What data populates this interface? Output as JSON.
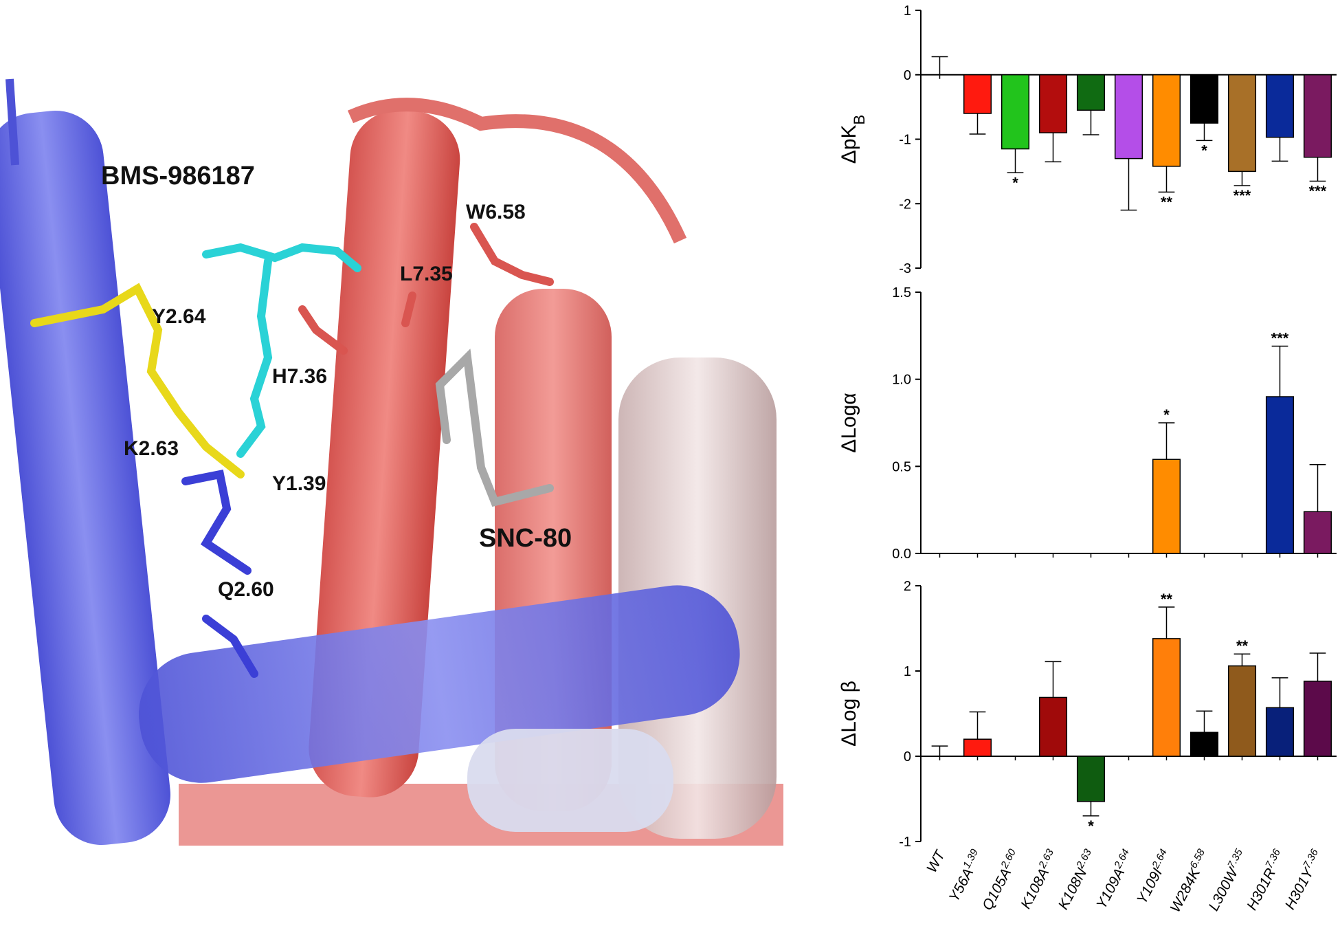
{
  "structure_labels": {
    "ligand_1": "BMS-986187",
    "ligand_2": "SNC-80",
    "residues": [
      "W6.58",
      "L7.35",
      "Y2.64",
      "H7.36",
      "K2.63",
      "Y1.39",
      "Q2.60"
    ]
  },
  "chart_data": [
    {
      "type": "bar",
      "ylabel": "ΔpK",
      "ylabel_subscript": "B",
      "values": [
        0,
        -0.6,
        -1.15,
        -0.9,
        -0.55,
        -1.3,
        -1.42,
        -0.75,
        -1.5,
        -0.97,
        -1.28
      ],
      "errors": [
        0.28,
        0.32,
        0.37,
        0.45,
        0.38,
        0.8,
        0.4,
        0.27,
        0.22,
        0.37,
        0.37
      ],
      "significance": [
        null,
        null,
        "*",
        null,
        null,
        null,
        "**",
        "*",
        "***",
        null,
        "***"
      ],
      "colors": [
        "#ffffff",
        "#ff1a0f",
        "#22c41c",
        "#b30d0d",
        "#106b12",
        "#b44ee8",
        "#ff8c00",
        "#000000",
        "#a87028",
        "#0a2a9a",
        "#7a1a60"
      ],
      "ylim": [
        -3,
        1
      ],
      "yticks": [
        -3,
        -2,
        -1,
        0,
        1
      ]
    },
    {
      "type": "bar",
      "ylabel": "ΔLogα",
      "values": [
        null,
        null,
        null,
        null,
        null,
        null,
        0.54,
        null,
        null,
        0.9,
        0.24
      ],
      "errors": [
        null,
        null,
        null,
        null,
        null,
        null,
        0.21,
        null,
        null,
        0.29,
        0.27
      ],
      "significance": [
        null,
        null,
        null,
        null,
        null,
        null,
        "*",
        null,
        null,
        "***",
        null
      ],
      "colors": [
        "#ffffff",
        "#ff1a0f",
        "#22c41c",
        "#b30d0d",
        "#106b12",
        "#b44ee8",
        "#ff8c00",
        "#000000",
        "#a87028",
        "#0a2a9a",
        "#7a1a60"
      ],
      "ylim": [
        0,
        1.5
      ],
      "yticks": [
        {
          "value": 0,
          "label": "0.0"
        },
        {
          "value": 0.5,
          "label": "0.5"
        },
        {
          "value": 1,
          "label": "1.0"
        },
        {
          "value": 1.5,
          "label": "1.5"
        }
      ]
    },
    {
      "type": "bar",
      "ylabel": "ΔLog β",
      "categories": [
        {
          "name": "WT"
        },
        {
          "name": "Y56A",
          "superscript": "1.39"
        },
        {
          "name": "Q105A",
          "superscript": "2.60"
        },
        {
          "name": "K108A",
          "superscript": "2.63"
        },
        {
          "name": "K108N",
          "superscript": "2.63"
        },
        {
          "name": "Y109A",
          "superscript": "2.64"
        },
        {
          "name": "Y109I",
          "superscript": "2.64"
        },
        {
          "name": "W284K",
          "superscript": "6.58"
        },
        {
          "name": "L300W",
          "superscript": "7.35"
        },
        {
          "name": "H301R",
          "superscript": "7.36"
        },
        {
          "name": "H301Y",
          "superscript": "7.36"
        }
      ],
      "values": [
        0,
        0.2,
        null,
        0.69,
        -0.53,
        null,
        1.38,
        0.28,
        1.06,
        0.57,
        0.88
      ],
      "errors": [
        0.12,
        0.32,
        null,
        0.42,
        0.17,
        null,
        0.37,
        0.25,
        0.14,
        0.35,
        0.33
      ],
      "significance": [
        null,
        null,
        null,
        null,
        "*",
        null,
        "**",
        null,
        "**",
        null,
        null
      ],
      "colors": [
        "#ffffff",
        "#ff1a0f",
        "#22c41c",
        "#a00a0a",
        "#0f5c10",
        "#b44ee8",
        "#ff7f0a",
        "#000000",
        "#8f5a1c",
        "#08207a",
        "#5c0a4a"
      ],
      "ylim": [
        -1,
        2
      ],
      "yticks": [
        -1,
        0,
        1,
        2
      ]
    }
  ]
}
